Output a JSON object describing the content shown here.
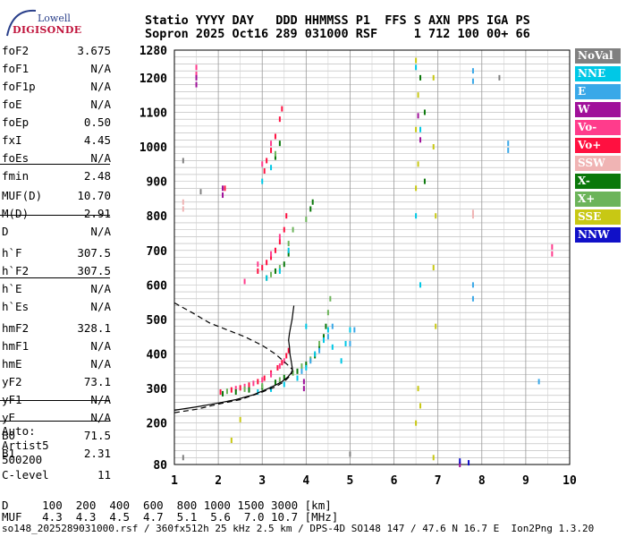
{
  "logo": {
    "top": "Lowell",
    "bottom": "DIGISONDE"
  },
  "header": {
    "line1": "Statio YYYY DAY   DDD HHMMSS P1  FFS S AXN PPS IGA PS",
    "line2": "Sopron 2025 Oct16 289 031000 RSF     1 712 100 00+ 66"
  },
  "params_group1": [
    {
      "k": "foF2",
      "v": "3.675"
    },
    {
      "k": "foF1",
      "v": "N/A"
    },
    {
      "k": "foF1p",
      "v": "N/A"
    },
    {
      "k": "foE",
      "v": "N/A"
    },
    {
      "k": "foEp",
      "v": "0.50"
    },
    {
      "k": "fxI",
      "v": "4.45"
    },
    {
      "k": "foEs",
      "v": "N/A"
    },
    {
      "k": "fmin",
      "v": "2.48"
    }
  ],
  "params_group2": [
    {
      "k": "MUF(D)",
      "v": "10.70"
    },
    {
      "k": "M(D)",
      "v": "2.91"
    },
    {
      "k": "D",
      "v": "N/A"
    }
  ],
  "params_group3": [
    {
      "k": "h`F",
      "v": "307.5"
    },
    {
      "k": "h`F2",
      "v": "307.5"
    },
    {
      "k": "h`E",
      "v": "N/A"
    },
    {
      "k": "h`Es",
      "v": "N/A"
    }
  ],
  "params_group4": [
    {
      "k": "hmF2",
      "v": "328.1"
    },
    {
      "k": "hmF1",
      "v": "N/A"
    },
    {
      "k": "hmE",
      "v": "N/A"
    },
    {
      "k": "yF2",
      "v": "73.1"
    },
    {
      "k": "yF1",
      "v": "N/A"
    },
    {
      "k": "yE",
      "v": "N/A"
    },
    {
      "k": "B0",
      "v": "71.5"
    },
    {
      "k": "B1",
      "v": "2.31"
    }
  ],
  "params_group5": [
    {
      "k": "C-level",
      "v": "11"
    }
  ],
  "autoscale": {
    "line1": "Auto:",
    "line2": "Artist5",
    "line3": "500200"
  },
  "legend": [
    {
      "label": "NoVal",
      "color": "#808080"
    },
    {
      "label": "NNE",
      "color": "#00c8e6"
    },
    {
      "label": "E",
      "color": "#39a8e8"
    },
    {
      "label": "W",
      "color": "#a0109a"
    },
    {
      "label": "Vo-",
      "color": "#ff3c8c"
    },
    {
      "label": "Vo+",
      "color": "#ff1040"
    },
    {
      "label": "SSW",
      "color": "#f0b4b4"
    },
    {
      "label": "X-",
      "color": "#0a780a"
    },
    {
      "label": "X+",
      "color": "#6cb45a"
    },
    {
      "label": "SSE",
      "color": "#c8c814"
    },
    {
      "label": "NNW",
      "color": "#1010c8"
    }
  ],
  "muf_table": {
    "d_line": "D     100  200  400  600  800 1000 1500 3000 [km]",
    "muf_line": "MUF   4.3  4.3  4.5  4.7  5.1  5.6  7.0 10.7 [MHz]"
  },
  "footer": "so148_2025289031000.rsf / 360fx512h 25 kHz 2.5 km / DPS-4D SO148 147 / 47.6 N 16.7 E  Ion2Png 1.3.20",
  "chart_data": {
    "type": "scatter",
    "xlim": [
      1,
      10
    ],
    "ylim": [
      80,
      1280
    ],
    "x_ticks": [
      1,
      2,
      3,
      4,
      5,
      6,
      7,
      8,
      9,
      10
    ],
    "y_ticks": [
      200,
      300,
      400,
      500,
      600,
      700,
      800,
      900,
      1000,
      1100,
      1200,
      1280
    ],
    "y_tick_label_80": "80",
    "grid": true,
    "xlabel": "",
    "ylabel": "",
    "series": [
      {
        "name": "Vo+",
        "color": "#ff1040",
        "points": [
          [
            2.05,
            290
          ],
          [
            2.3,
            296
          ],
          [
            2.5,
            302
          ],
          [
            2.7,
            310
          ],
          [
            2.9,
            320
          ],
          [
            3.05,
            330
          ],
          [
            3.2,
            345
          ],
          [
            3.35,
            360
          ],
          [
            3.45,
            375
          ],
          [
            3.55,
            395
          ],
          [
            3.6,
            410
          ],
          [
            2.9,
            640
          ],
          [
            3.0,
            650
          ],
          [
            3.1,
            665
          ],
          [
            3.2,
            680
          ],
          [
            3.3,
            700
          ],
          [
            3.4,
            725
          ],
          [
            3.5,
            760
          ],
          [
            3.55,
            800
          ],
          [
            3.05,
            930
          ],
          [
            3.1,
            960
          ],
          [
            3.2,
            990
          ],
          [
            3.3,
            1030
          ],
          [
            3.4,
            1080
          ],
          [
            3.45,
            1110
          ],
          [
            2.15,
            880
          ]
        ]
      },
      {
        "name": "Vo-",
        "color": "#ff3c8c",
        "points": [
          [
            2.4,
            300
          ],
          [
            2.6,
            306
          ],
          [
            2.8,
            315
          ],
          [
            3.0,
            325
          ],
          [
            3.2,
            340
          ],
          [
            3.4,
            365
          ],
          [
            3.5,
            380
          ],
          [
            2.6,
            610
          ],
          [
            2.9,
            660
          ],
          [
            3.2,
            690
          ],
          [
            3.4,
            740
          ],
          [
            3.0,
            950
          ],
          [
            3.2,
            1010
          ],
          [
            1.5,
            1210
          ],
          [
            1.5,
            1230
          ],
          [
            9.6,
            690
          ],
          [
            9.6,
            710
          ]
        ]
      },
      {
        "name": "X-",
        "color": "#0a780a",
        "points": [
          [
            2.1,
            285
          ],
          [
            2.4,
            290
          ],
          [
            2.7,
            296
          ],
          [
            3.0,
            304
          ],
          [
            3.3,
            318
          ],
          [
            3.5,
            332
          ],
          [
            3.8,
            350
          ],
          [
            4.0,
            370
          ],
          [
            4.2,
            395
          ],
          [
            4.3,
            420
          ],
          [
            4.4,
            450
          ],
          [
            4.45,
            480
          ],
          [
            3.1,
            620
          ],
          [
            3.3,
            640
          ],
          [
            3.5,
            660
          ],
          [
            3.6,
            690
          ],
          [
            4.1,
            820
          ],
          [
            4.15,
            840
          ],
          [
            3.3,
            970
          ],
          [
            3.4,
            1010
          ],
          [
            6.6,
            1200
          ],
          [
            6.7,
            1100
          ],
          [
            6.7,
            900
          ]
        ]
      },
      {
        "name": "X+",
        "color": "#6cb45a",
        "points": [
          [
            2.2,
            292
          ],
          [
            2.6,
            298
          ],
          [
            3.0,
            308
          ],
          [
            3.4,
            325
          ],
          [
            3.7,
            345
          ],
          [
            3.9,
            365
          ],
          [
            4.1,
            385
          ],
          [
            4.3,
            430
          ],
          [
            4.5,
            520
          ],
          [
            4.55,
            560
          ],
          [
            3.2,
            630
          ],
          [
            3.4,
            650
          ],
          [
            3.6,
            720
          ],
          [
            3.7,
            760
          ],
          [
            4.0,
            790
          ],
          [
            3.3,
            980
          ]
        ]
      },
      {
        "name": "NNE",
        "color": "#00c8e6",
        "points": [
          [
            2.9,
            290
          ],
          [
            3.2,
            298
          ],
          [
            3.5,
            312
          ],
          [
            3.8,
            330
          ],
          [
            4.0,
            360
          ],
          [
            4.2,
            400
          ],
          [
            4.4,
            440
          ],
          [
            4.5,
            470
          ],
          [
            4.6,
            420
          ],
          [
            4.8,
            380
          ],
          [
            4.9,
            430
          ],
          [
            5.0,
            470
          ],
          [
            4.0,
            480
          ],
          [
            3.1,
            620
          ],
          [
            3.4,
            640
          ],
          [
            3.6,
            700
          ],
          [
            3.0,
            900
          ],
          [
            3.2,
            940
          ],
          [
            6.5,
            1230
          ],
          [
            6.6,
            1050
          ],
          [
            6.5,
            800
          ],
          [
            6.6,
            600
          ]
        ]
      },
      {
        "name": "E",
        "color": "#39a8e8",
        "points": [
          [
            3.9,
            350
          ],
          [
            4.1,
            380
          ],
          [
            4.3,
            410
          ],
          [
            4.5,
            450
          ],
          [
            4.6,
            480
          ],
          [
            5.0,
            430
          ],
          [
            5.1,
            470
          ],
          [
            7.8,
            1220
          ],
          [
            7.8,
            1190
          ],
          [
            7.8,
            600
          ],
          [
            7.8,
            560
          ],
          [
            8.6,
            990
          ],
          [
            8.6,
            1010
          ],
          [
            9.3,
            320
          ]
        ]
      },
      {
        "name": "W",
        "color": "#a0109a",
        "points": [
          [
            1.5,
            1180
          ],
          [
            1.5,
            1200
          ],
          [
            2.1,
            880
          ],
          [
            2.1,
            860
          ],
          [
            3.95,
            300
          ],
          [
            3.95,
            320
          ],
          [
            6.55,
            1090
          ],
          [
            6.6,
            1020
          ],
          [
            7.5,
            80
          ]
        ]
      },
      {
        "name": "SSE",
        "color": "#c8c814",
        "points": [
          [
            6.5,
            1250
          ],
          [
            6.55,
            1150
          ],
          [
            6.5,
            1050
          ],
          [
            6.55,
            950
          ],
          [
            6.5,
            880
          ],
          [
            6.55,
            300
          ],
          [
            6.6,
            250
          ],
          [
            6.5,
            200
          ],
          [
            6.9,
            1200
          ],
          [
            6.9,
            1000
          ],
          [
            6.95,
            800
          ],
          [
            6.9,
            650
          ],
          [
            6.95,
            480
          ],
          [
            2.5,
            210
          ],
          [
            2.3,
            150
          ],
          [
            6.9,
            100
          ]
        ]
      },
      {
        "name": "SSW",
        "color": "#f0b4b4",
        "points": [
          [
            1.2,
            820
          ],
          [
            1.2,
            840
          ],
          [
            7.8,
            800
          ],
          [
            7.8,
            810
          ]
        ]
      },
      {
        "name": "NoVal",
        "color": "#808080",
        "points": [
          [
            1.2,
            960
          ],
          [
            1.6,
            870
          ],
          [
            1.2,
            100
          ],
          [
            8.4,
            1200
          ],
          [
            5.0,
            110
          ]
        ]
      },
      {
        "name": "NNW",
        "color": "#1010c8",
        "points": [
          [
            7.5,
            90
          ],
          [
            7.7,
            85
          ]
        ]
      }
    ],
    "model_curves": {
      "solid": [
        [
          1.0,
          237
        ],
        [
          1.5,
          247
        ],
        [
          2.0,
          258
        ],
        [
          2.4,
          268
        ],
        [
          2.8,
          282
        ],
        [
          3.1,
          298
        ],
        [
          3.3,
          310
        ],
        [
          3.45,
          320
        ],
        [
          3.58,
          333
        ],
        [
          3.66,
          345
        ],
        [
          3.69,
          355
        ],
        [
          3.66,
          380
        ],
        [
          3.63,
          400
        ],
        [
          3.62,
          420
        ],
        [
          3.6,
          440
        ],
        [
          3.62,
          460
        ],
        [
          3.65,
          480
        ],
        [
          3.68,
          500
        ],
        [
          3.7,
          520
        ],
        [
          3.72,
          540
        ]
      ],
      "dashed_lower": [
        [
          1.0,
          230
        ],
        [
          1.5,
          240
        ],
        [
          2.0,
          255
        ],
        [
          2.5,
          268
        ],
        [
          3.0,
          290
        ],
        [
          3.3,
          305
        ],
        [
          3.5,
          320
        ],
        [
          3.66,
          340
        ],
        [
          3.69,
          352
        ]
      ],
      "dashed_upper": [
        [
          1.0,
          548
        ],
        [
          1.4,
          520
        ],
        [
          1.8,
          490
        ],
        [
          2.2,
          470
        ],
        [
          2.6,
          450
        ],
        [
          3.0,
          425
        ],
        [
          3.3,
          400
        ],
        [
          3.55,
          372
        ],
        [
          3.69,
          355
        ]
      ]
    }
  }
}
